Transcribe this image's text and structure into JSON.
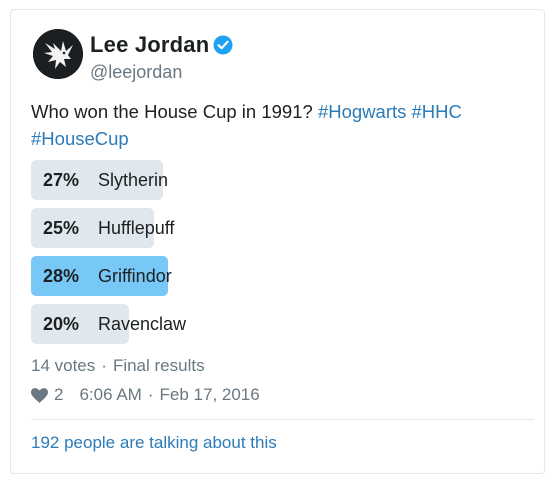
{
  "author": {
    "name": "Lee Jordan",
    "handle": "@leejordan",
    "verified_icon": "verified-badge-icon",
    "avatar_icon": "eagle-avatar-icon"
  },
  "tweet": {
    "text_plain": "Who won the House Cup in 1991?",
    "hashtags": [
      "#Hogwarts",
      "#HHC",
      "#HouseCup"
    ]
  },
  "poll": {
    "choices": [
      {
        "percent": "27%",
        "label": "Slytherin",
        "fraction": 0.27,
        "winner": false
      },
      {
        "percent": "25%",
        "label": "Hufflepuff",
        "fraction": 0.25,
        "winner": false
      },
      {
        "percent": "28%",
        "label": "Griffindor",
        "fraction": 0.28,
        "winner": true
      },
      {
        "percent": "20%",
        "label": "Ravenclaw",
        "fraction": 0.2,
        "winner": false
      }
    ],
    "votes": "14 votes",
    "status": "Final results"
  },
  "footer": {
    "likes": "2",
    "time": "6:06 AM",
    "date": "Feb 17, 2016",
    "talking": "192 people are talking about this"
  },
  "colors": {
    "accent": "#2b7bb9",
    "winner_bar": "#77c7f7",
    "bar": "#e1e8ed",
    "muted": "#697882"
  }
}
